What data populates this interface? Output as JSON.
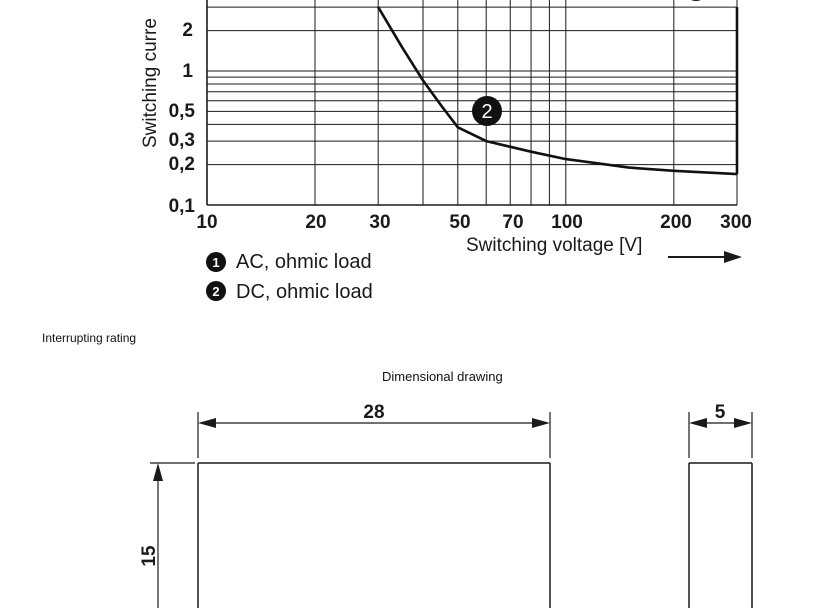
{
  "chart_data": {
    "type": "line",
    "xlabel": "Switching voltage [V]",
    "ylabel": "Switching curre",
    "x_scale": "log",
    "y_scale": "log",
    "x_ticks": [
      "10",
      "20",
      "30",
      "50",
      "70",
      "100",
      "200",
      "300"
    ],
    "y_ticks": [
      "2",
      "1",
      "0,5",
      "0,3",
      "0,2",
      "0,1"
    ],
    "series": [
      {
        "marker": "1",
        "x": [
          300,
          300
        ],
        "y": [
          0.17,
          3
        ]
      },
      {
        "marker": "2",
        "x": [
          30,
          35,
          40,
          45,
          50,
          60,
          80,
          100,
          150,
          200,
          300
        ],
        "y": [
          3,
          1.5,
          0.85,
          0.55,
          0.38,
          0.3,
          0.25,
          0.22,
          0.19,
          0.18,
          0.17
        ]
      }
    ],
    "legend": [
      {
        "marker": "1",
        "label": "AC, ohmic load"
      },
      {
        "marker": "2",
        "label": "DC, ohmic load"
      }
    ]
  },
  "captions": {
    "chart_caption": "Interrupting rating",
    "drawing_title": "Dimensional drawing"
  },
  "drawing": {
    "width_label": "28",
    "depth_label": "5",
    "height_label": "15"
  }
}
